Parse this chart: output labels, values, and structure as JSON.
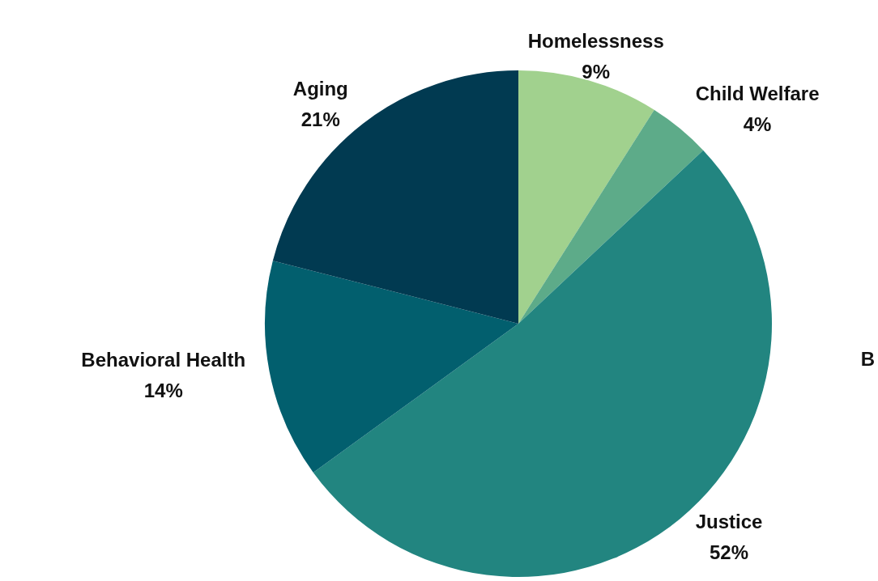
{
  "chart_data": {
    "type": "pie",
    "categories": [
      "Homelessness",
      "Child Welfare",
      "Justice",
      "Behavioral Health",
      "Aging"
    ],
    "values": [
      9,
      4,
      52,
      14,
      21
    ],
    "colors": [
      "#a1d18e",
      "#5dab89",
      "#228580",
      "#025f6e",
      "#013a51"
    ],
    "value_labels": [
      "9%",
      "4%",
      "52%",
      "14%",
      "21%"
    ],
    "legend": false,
    "annotations": [
      "B"
    ]
  }
}
